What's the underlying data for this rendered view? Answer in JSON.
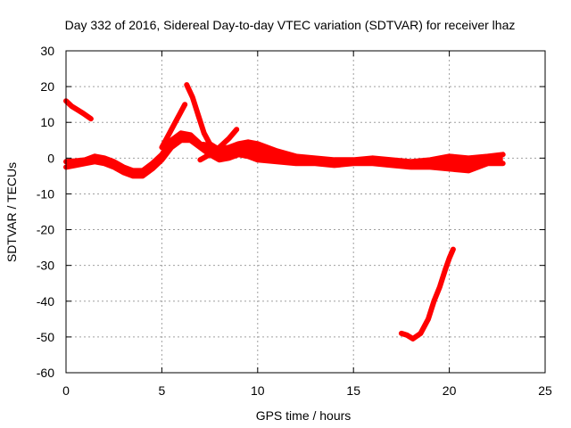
{
  "chart_data": {
    "type": "line",
    "title": "Day 332 of 2016, Sidereal Day-to-day VTEC variation (SDTVAR) for receiver lhaz",
    "xlabel": "GPS time / hours",
    "ylabel": "SDTVAR / TECUs",
    "xlim": [
      0,
      25
    ],
    "ylim": [
      -60,
      30
    ],
    "x_ticks": [
      0,
      5,
      10,
      15,
      20,
      25
    ],
    "y_ticks": [
      -60,
      -50,
      -40,
      -30,
      -20,
      -10,
      0,
      10,
      20,
      30
    ],
    "grid": true,
    "color": "#ff0000",
    "series": [
      {
        "name": "main-band-upper",
        "x": [
          0,
          0.5,
          1.0,
          1.5,
          2.0,
          2.5,
          3.0,
          3.5,
          4.0,
          4.5,
          5.0,
          5.5,
          6.0,
          6.5,
          7.0,
          7.5,
          8.0,
          8.5,
          9.0,
          9.5,
          10.0,
          11.0,
          12.0,
          13.0,
          14.0,
          15.0,
          16.0,
          17.0,
          18.0,
          19.0,
          20.0,
          21.0,
          22.0,
          22.8
        ],
        "y": [
          -1,
          -0.8,
          -0.5,
          0.5,
          0,
          -1,
          -2.5,
          -3.5,
          -3.5,
          -1.5,
          1,
          5,
          7,
          6.5,
          4,
          3.5,
          2.5,
          3,
          4,
          4.5,
          4,
          2,
          0.5,
          0,
          -0.5,
          -0.5,
          0,
          -0.5,
          -1,
          -0.5,
          0.5,
          0,
          0.5,
          1
        ]
      },
      {
        "name": "main-band-lower",
        "x": [
          0,
          0.5,
          1.0,
          1.5,
          2.0,
          2.5,
          3.0,
          3.5,
          4.0,
          4.5,
          5.0,
          5.5,
          6.0,
          6.5,
          7.0,
          7.5,
          8.0,
          8.5,
          9.0,
          9.5,
          10.0,
          11.0,
          12.0,
          13.0,
          14.0,
          15.0,
          16.0,
          17.0,
          18.0,
          19.0,
          20.0,
          21.0,
          22.0,
          22.8
        ],
        "y": [
          -2.5,
          -2,
          -1.5,
          -1,
          -1.5,
          -2.5,
          -4,
          -5,
          -5,
          -3,
          -0.5,
          3,
          5,
          5,
          3,
          1,
          -0.5,
          0,
          1,
          0.5,
          -0.5,
          -1,
          -1.5,
          -1.5,
          -2,
          -1.5,
          -1.5,
          -2,
          -2.5,
          -2.5,
          -3,
          -3.5,
          -1.5,
          -1.5
        ]
      },
      {
        "name": "spike-a",
        "x": [
          6.3,
          6.6,
          6.9,
          7.2,
          7.5,
          7.8
        ],
        "y": [
          20.5,
          17,
          12,
          7,
          4,
          3
        ]
      },
      {
        "name": "spike-b",
        "x": [
          5.0,
          5.4,
          5.8,
          6.2
        ],
        "y": [
          3,
          7,
          11,
          15
        ]
      },
      {
        "name": "spike-c",
        "x": [
          7.0,
          7.5,
          8.0,
          8.5,
          8.9
        ],
        "y": [
          -0.5,
          1,
          3,
          5.5,
          8
        ]
      },
      {
        "name": "early-segment",
        "x": [
          0,
          0.3,
          0.6,
          0.9,
          1.3
        ],
        "y": [
          16,
          14.5,
          13.5,
          12.5,
          11
        ]
      },
      {
        "name": "late-dip",
        "x": [
          17.5,
          17.8,
          18.1,
          18.5,
          18.9,
          19.2,
          19.5,
          19.8,
          20.0,
          20.2
        ],
        "y": [
          -49,
          -49.5,
          -50.5,
          -49,
          -45,
          -40,
          -36,
          -31,
          -28,
          -25.5
        ]
      }
    ]
  }
}
